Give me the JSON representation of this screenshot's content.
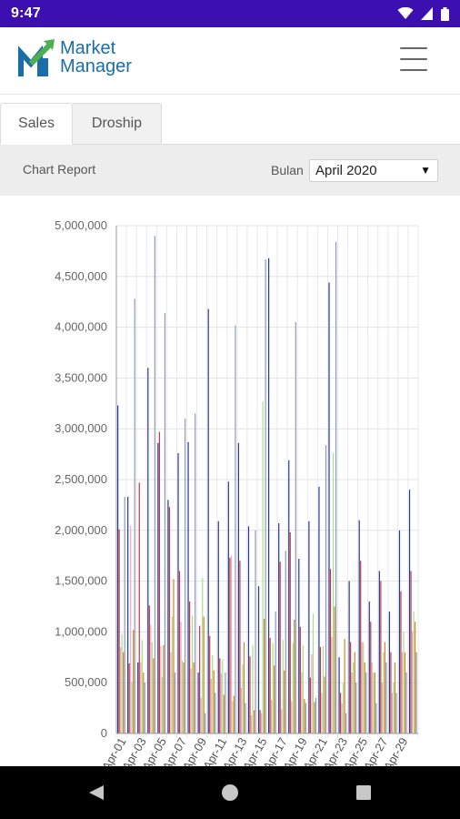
{
  "status_bar": {
    "time": "9:47"
  },
  "header": {
    "logo_line1": "Market",
    "logo_line2": "Manager"
  },
  "tabs": [
    {
      "label": "Sales",
      "active": true
    },
    {
      "label": "Droship",
      "active": false
    }
  ],
  "filter": {
    "title": "Chart Report",
    "month_label": "Bulan",
    "month_value": "April 2020"
  },
  "colors": {
    "status_bar": "#3b0fb0",
    "series": [
      "#2b3a8c",
      "#c23a4a",
      "#f0aab5",
      "#a8e08a",
      "#c98a2a",
      "#8e9bb8"
    ]
  },
  "chart_data": {
    "type": "bar",
    "title": "",
    "xlabel": "",
    "ylabel": "",
    "ylim": [
      0,
      5000000
    ],
    "yticks": [
      0,
      500000,
      1000000,
      1500000,
      2000000,
      2500000,
      3000000,
      3500000,
      4000000,
      4500000,
      5000000
    ],
    "ytick_labels": [
      "0",
      "500,000",
      "1,000,000",
      "1,500,000",
      "2,000,000",
      "2,500,000",
      "3,000,000",
      "3,500,000",
      "4,000,000",
      "4,500,000",
      "5,000,000"
    ],
    "categories": [
      "Apr-01",
      "Apr-02",
      "Apr-03",
      "Apr-04",
      "Apr-05",
      "Apr-06",
      "Apr-07",
      "Apr-08",
      "Apr-09",
      "Apr-10",
      "Apr-11",
      "Apr-12",
      "Apr-13",
      "Apr-14",
      "Apr-15",
      "Apr-16",
      "Apr-17",
      "Apr-18",
      "Apr-19",
      "Apr-20",
      "Apr-21",
      "Apr-22",
      "Apr-23",
      "Apr-24",
      "Apr-25",
      "Apr-26",
      "Apr-27",
      "Apr-28",
      "Apr-29",
      "Apr-30"
    ],
    "tick_labels_shown": [
      "Apr-01",
      "Apr-03",
      "Apr-05",
      "Apr-07",
      "Apr-09",
      "Apr-11",
      "Apr-13",
      "Apr-15",
      "Apr-17",
      "Apr-19",
      "Apr-21",
      "Apr-23",
      "Apr-25",
      "Apr-27",
      "Apr-29"
    ],
    "grid": true,
    "series": [
      {
        "values": [
          3230000,
          2330000,
          700000,
          3600000,
          2860000,
          2300000,
          2760000,
          2870000,
          600000,
          4180000,
          2090000,
          2480000,
          2860000,
          2040000,
          1450000,
          4680000,
          2070000,
          2690000,
          1720000,
          2090000,
          2430000,
          4440000,
          750000,
          1500000,
          2100000,
          1300000,
          1600000,
          1200000,
          2000000,
          2400000
        ]
      },
      {
        "values": [
          2010000,
          690000,
          2470000,
          1260000,
          2970000,
          2230000,
          1600000,
          1300000,
          1060000,
          960000,
          740000,
          1730000,
          1700000,
          760000,
          230000,
          940000,
          1690000,
          1980000,
          1050000,
          550000,
          850000,
          1620000,
          400000,
          900000,
          1700000,
          1100000,
          1500000,
          800000,
          1400000,
          1600000
        ]
      },
      {
        "values": [
          850000,
          2050000,
          700000,
          1070000,
          860000,
          800000,
          1100000,
          640000,
          350000,
          540000,
          590000,
          1750000,
          450000,
          180000,
          200000,
          330000,
          240000,
          320000,
          600000,
          780000,
          400000,
          950000,
          300000,
          600000,
          900000,
          700000,
          500000,
          400000,
          800000,
          1000000
        ]
      },
      {
        "values": [
          980000,
          510000,
          920000,
          900000,
          560000,
          1150000,
          720000,
          1160000,
          1530000,
          770000,
          730000,
          320000,
          680000,
          870000,
          3270000,
          890000,
          920000,
          890000,
          870000,
          1180000,
          860000,
          2760000,
          500000,
          700000,
          900000,
          600000,
          800000,
          500000,
          1000000,
          1200000
        ]
      },
      {
        "values": [
          800000,
          1020000,
          600000,
          740000,
          870000,
          1520000,
          700000,
          700000,
          1150000,
          620000,
          380000,
          370000,
          900000,
          230000,
          1130000,
          670000,
          620000,
          1120000,
          340000,
          310000,
          560000,
          1250000,
          930000,
          800000,
          700000,
          600000,
          900000,
          700000,
          800000,
          1100000
        ]
      },
      {
        "values": [
          2330000,
          4280000,
          500000,
          4900000,
          4140000,
          600000,
          3100000,
          3150000,
          200000,
          400000,
          600000,
          4020000,
          300000,
          2000000,
          4670000,
          1200000,
          1800000,
          4050000,
          300000,
          350000,
          2840000,
          4840000,
          200000,
          500000,
          600000,
          300000,
          700000,
          400000,
          600000,
          800000
        ]
      }
    ]
  }
}
